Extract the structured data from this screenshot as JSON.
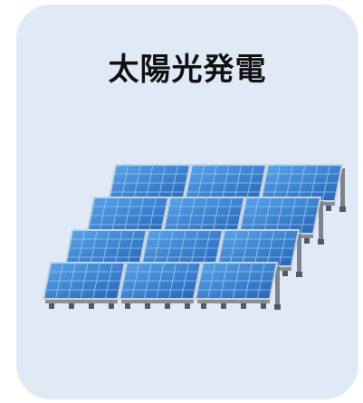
{
  "title": "太陽光発電"
}
